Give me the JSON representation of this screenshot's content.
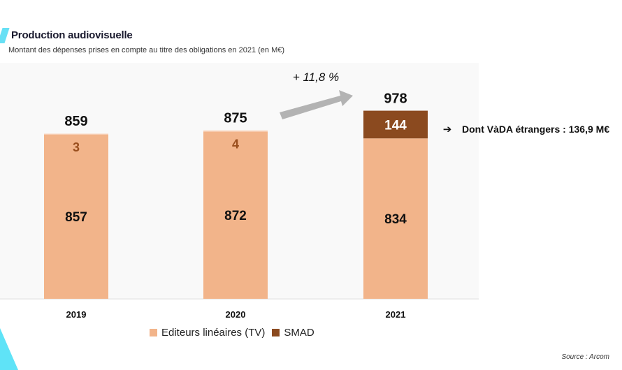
{
  "page": {
    "title": "Production audiovisuelle",
    "subtitle": "Montant des dépenses prises en compte au titre des obligations en 2021 (en M€)",
    "source": "Source : Arcom"
  },
  "colors": {
    "editeurs": "#f2b48a",
    "smad": "#8b4a1f",
    "smad_label_small": "#9a4f1e",
    "arrow": "#b3b3b3",
    "accent": "#67e0f5"
  },
  "chart_data": {
    "type": "bar",
    "stacked": true,
    "categories": [
      "2019",
      "2020",
      "2021"
    ],
    "series": [
      {
        "name": "Editeurs linéaires (TV)",
        "values": [
          857,
          872,
          834
        ]
      },
      {
        "name": "SMAD",
        "values": [
          3,
          4,
          144
        ]
      }
    ],
    "totals": [
      859,
      875,
      978
    ],
    "ylim": [
      0,
      1000
    ],
    "legend_position": "bottom",
    "grid": false,
    "annotations": {
      "growth": "+ 11,8 %",
      "note": "Dont VàDA étrangers : 136,9 M€"
    }
  }
}
